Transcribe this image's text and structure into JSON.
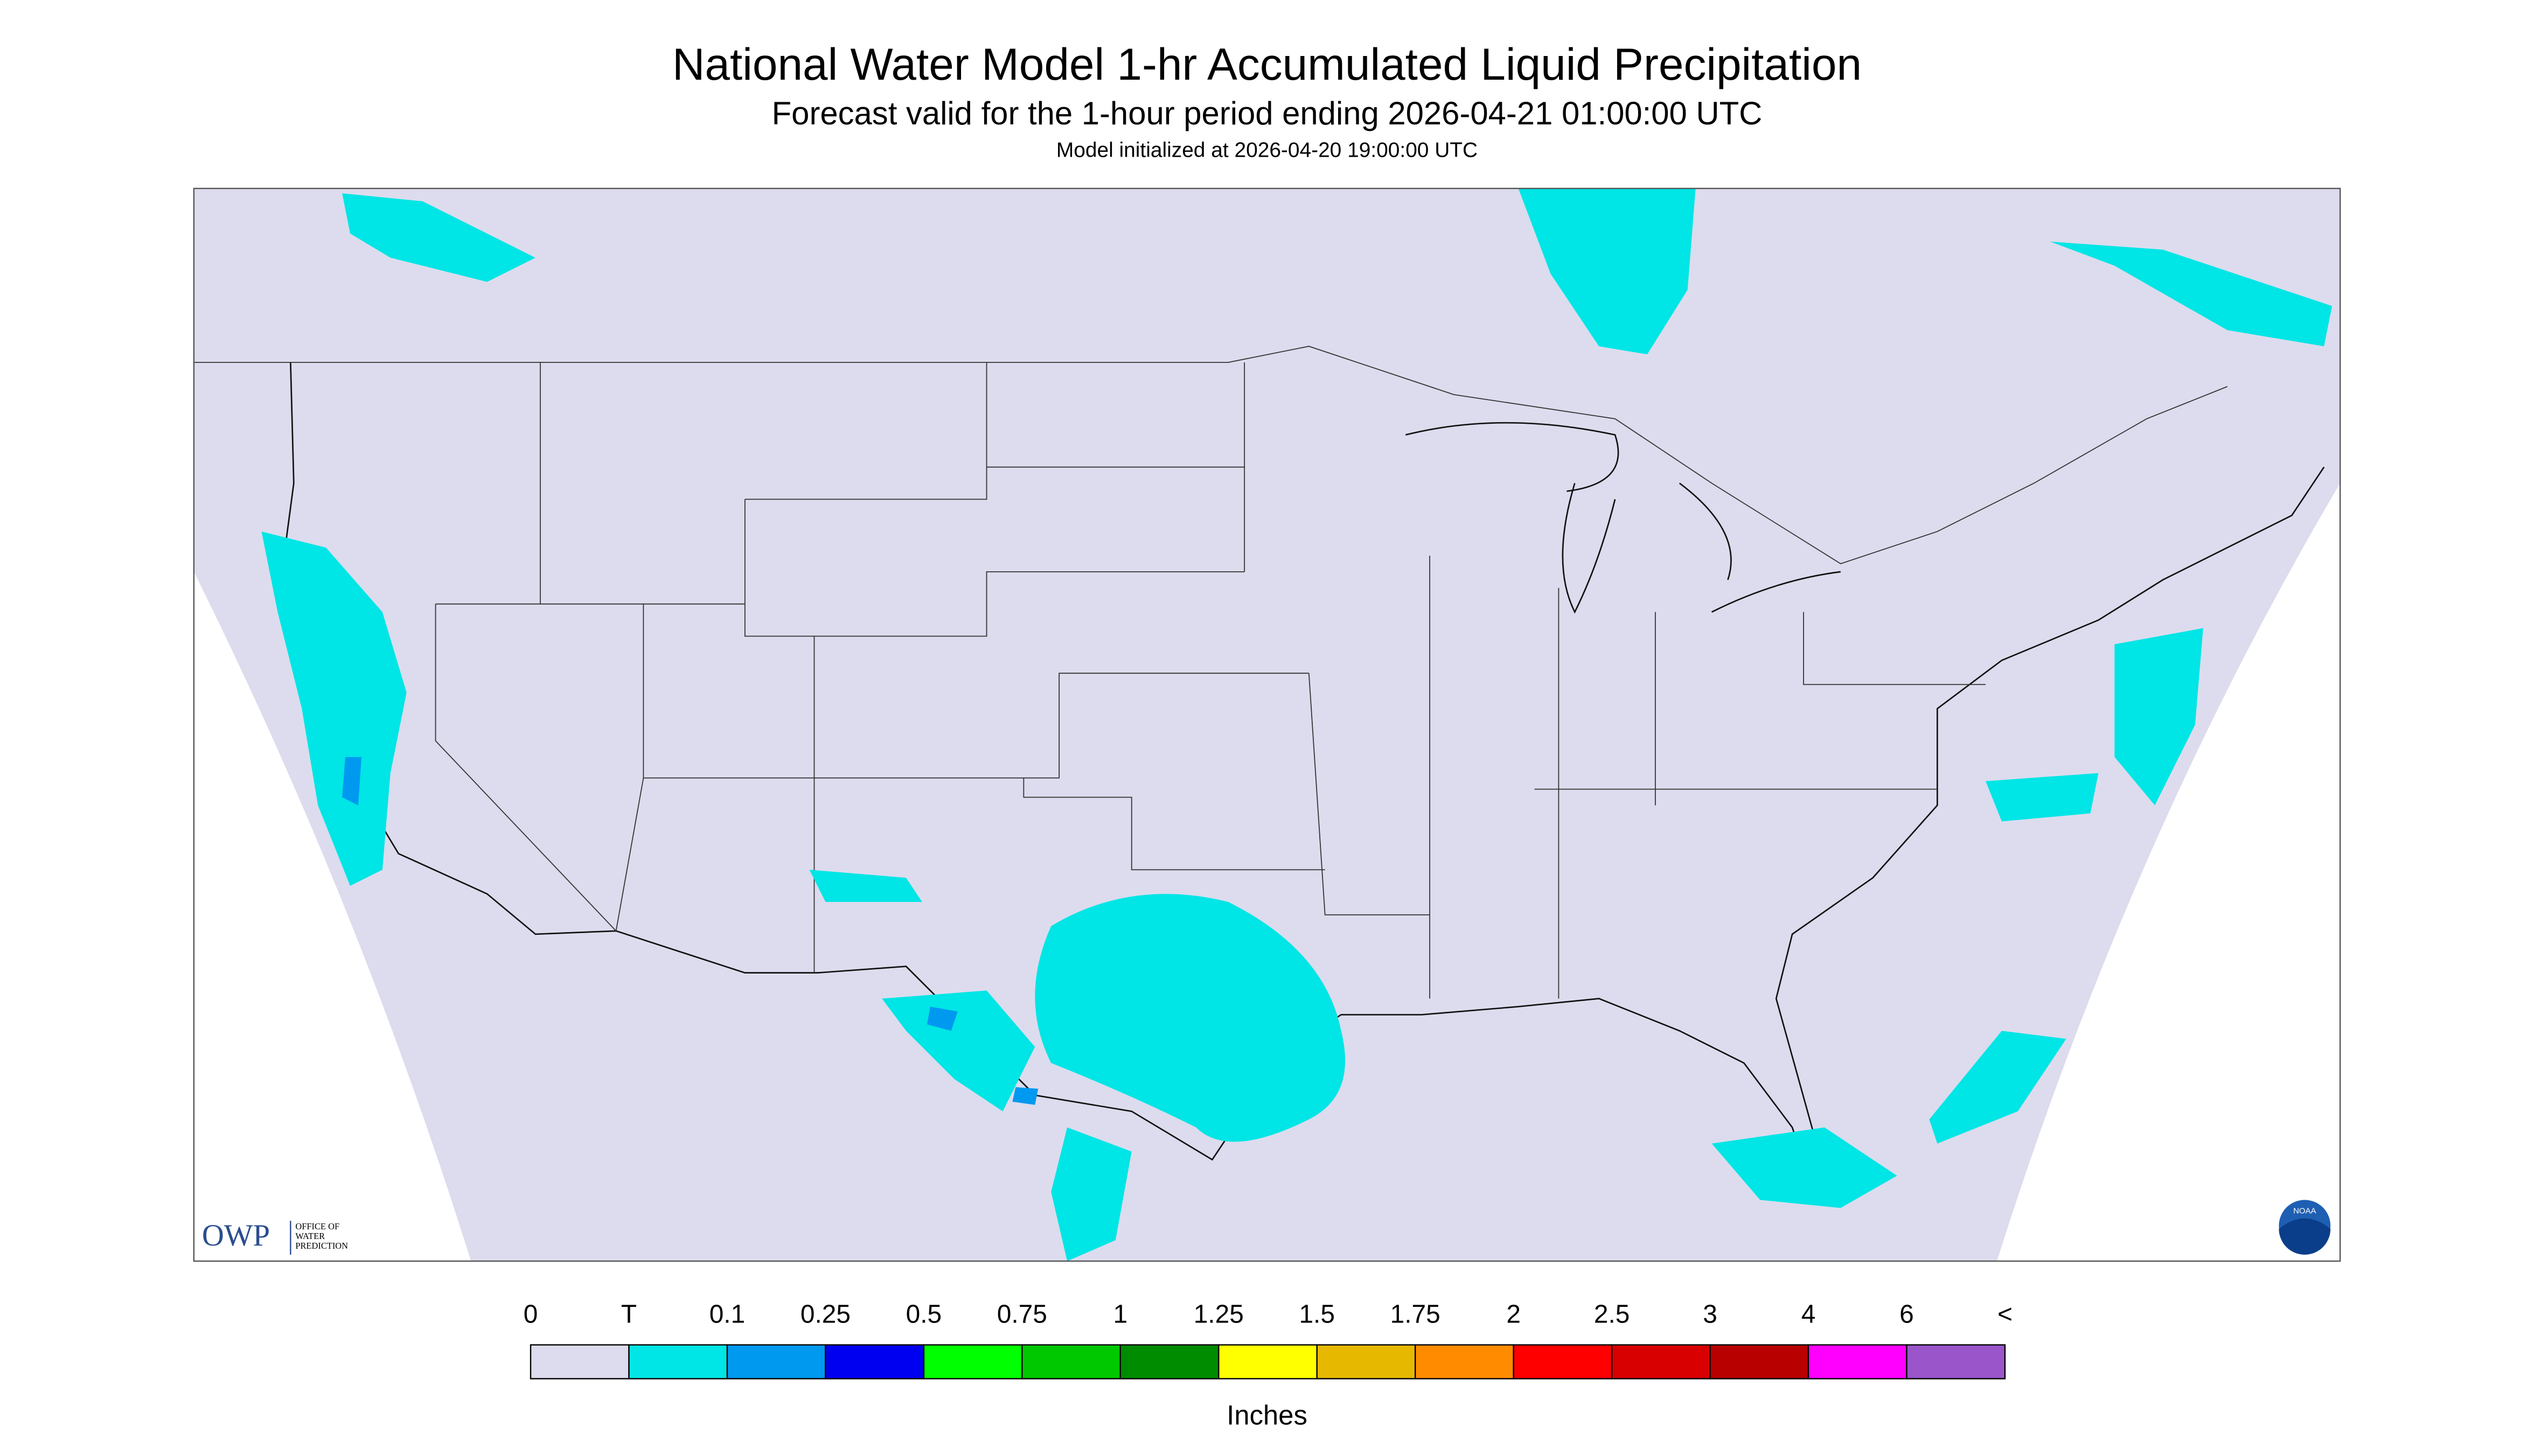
{
  "header": {
    "title": "National Water Model 1-hr Accumulated Liquid Precipitation",
    "subtitle": "Forecast valid for the 1-hour period ending 2026-04-21 01:00:00 UTC",
    "note": "Model initialized at 2026-04-20 19:00:00 UTC"
  },
  "legend": {
    "labels": [
      "0",
      "T",
      "0.1",
      "0.25",
      "0.5",
      "0.75",
      "1",
      "1.25",
      "1.5",
      "1.75",
      "2",
      "2.5",
      "3",
      "4",
      "6",
      "<"
    ],
    "colors": [
      "#dcdcee",
      "#00e5e5",
      "#0099f0",
      "#0000f0",
      "#00ff00",
      "#00c800",
      "#008c00",
      "#ffff00",
      "#e6b800",
      "#ff8c00",
      "#ff0000",
      "#d80000",
      "#b80000",
      "#ff00ff",
      "#9955c9"
    ],
    "unit": "Inches"
  },
  "logo": {
    "acronym": "OWP",
    "line1": "OFFICE OF",
    "line2": "WATER",
    "line3": "PREDICTION",
    "badge": "NOAA"
  }
}
